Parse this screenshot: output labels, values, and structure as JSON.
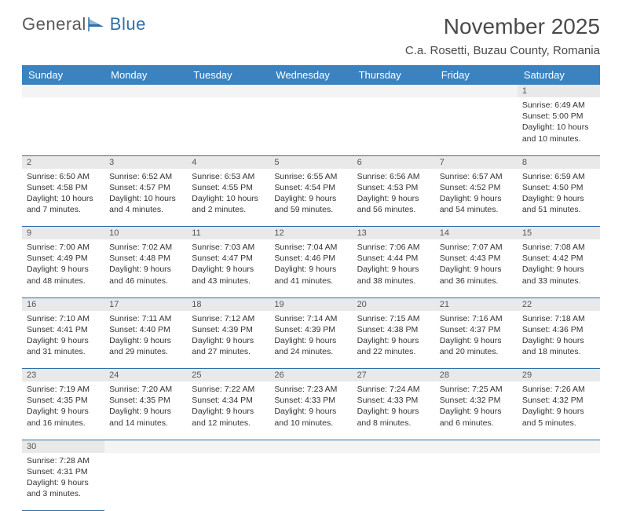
{
  "logo": {
    "textA": "General",
    "textB": "Blue"
  },
  "title": "November 2025",
  "location": "C.a. Rosetti, Buzau County, Romania",
  "colors": {
    "header_bg": "#3b83c0",
    "header_text": "#ffffff",
    "daynum_bg": "#e9e9e9",
    "row_border": "#2f6fa8",
    "logo_gray": "#5a5a5a",
    "logo_blue": "#2f6fa8"
  },
  "weekdays": [
    "Sunday",
    "Monday",
    "Tuesday",
    "Wednesday",
    "Thursday",
    "Friday",
    "Saturday"
  ],
  "weeks": [
    [
      null,
      null,
      null,
      null,
      null,
      null,
      {
        "n": "1",
        "sr": "6:49 AM",
        "ss": "5:00 PM",
        "dl": "10 hours and 10 minutes."
      }
    ],
    [
      {
        "n": "2",
        "sr": "6:50 AM",
        "ss": "4:58 PM",
        "dl": "10 hours and 7 minutes."
      },
      {
        "n": "3",
        "sr": "6:52 AM",
        "ss": "4:57 PM",
        "dl": "10 hours and 4 minutes."
      },
      {
        "n": "4",
        "sr": "6:53 AM",
        "ss": "4:55 PM",
        "dl": "10 hours and 2 minutes."
      },
      {
        "n": "5",
        "sr": "6:55 AM",
        "ss": "4:54 PM",
        "dl": "9 hours and 59 minutes."
      },
      {
        "n": "6",
        "sr": "6:56 AM",
        "ss": "4:53 PM",
        "dl": "9 hours and 56 minutes."
      },
      {
        "n": "7",
        "sr": "6:57 AM",
        "ss": "4:52 PM",
        "dl": "9 hours and 54 minutes."
      },
      {
        "n": "8",
        "sr": "6:59 AM",
        "ss": "4:50 PM",
        "dl": "9 hours and 51 minutes."
      }
    ],
    [
      {
        "n": "9",
        "sr": "7:00 AM",
        "ss": "4:49 PM",
        "dl": "9 hours and 48 minutes."
      },
      {
        "n": "10",
        "sr": "7:02 AM",
        "ss": "4:48 PM",
        "dl": "9 hours and 46 minutes."
      },
      {
        "n": "11",
        "sr": "7:03 AM",
        "ss": "4:47 PM",
        "dl": "9 hours and 43 minutes."
      },
      {
        "n": "12",
        "sr": "7:04 AM",
        "ss": "4:46 PM",
        "dl": "9 hours and 41 minutes."
      },
      {
        "n": "13",
        "sr": "7:06 AM",
        "ss": "4:44 PM",
        "dl": "9 hours and 38 minutes."
      },
      {
        "n": "14",
        "sr": "7:07 AM",
        "ss": "4:43 PM",
        "dl": "9 hours and 36 minutes."
      },
      {
        "n": "15",
        "sr": "7:08 AM",
        "ss": "4:42 PM",
        "dl": "9 hours and 33 minutes."
      }
    ],
    [
      {
        "n": "16",
        "sr": "7:10 AM",
        "ss": "4:41 PM",
        "dl": "9 hours and 31 minutes."
      },
      {
        "n": "17",
        "sr": "7:11 AM",
        "ss": "4:40 PM",
        "dl": "9 hours and 29 minutes."
      },
      {
        "n": "18",
        "sr": "7:12 AM",
        "ss": "4:39 PM",
        "dl": "9 hours and 27 minutes."
      },
      {
        "n": "19",
        "sr": "7:14 AM",
        "ss": "4:39 PM",
        "dl": "9 hours and 24 minutes."
      },
      {
        "n": "20",
        "sr": "7:15 AM",
        "ss": "4:38 PM",
        "dl": "9 hours and 22 minutes."
      },
      {
        "n": "21",
        "sr": "7:16 AM",
        "ss": "4:37 PM",
        "dl": "9 hours and 20 minutes."
      },
      {
        "n": "22",
        "sr": "7:18 AM",
        "ss": "4:36 PM",
        "dl": "9 hours and 18 minutes."
      }
    ],
    [
      {
        "n": "23",
        "sr": "7:19 AM",
        "ss": "4:35 PM",
        "dl": "9 hours and 16 minutes."
      },
      {
        "n": "24",
        "sr": "7:20 AM",
        "ss": "4:35 PM",
        "dl": "9 hours and 14 minutes."
      },
      {
        "n": "25",
        "sr": "7:22 AM",
        "ss": "4:34 PM",
        "dl": "9 hours and 12 minutes."
      },
      {
        "n": "26",
        "sr": "7:23 AM",
        "ss": "4:33 PM",
        "dl": "9 hours and 10 minutes."
      },
      {
        "n": "27",
        "sr": "7:24 AM",
        "ss": "4:33 PM",
        "dl": "9 hours and 8 minutes."
      },
      {
        "n": "28",
        "sr": "7:25 AM",
        "ss": "4:32 PM",
        "dl": "9 hours and 6 minutes."
      },
      {
        "n": "29",
        "sr": "7:26 AM",
        "ss": "4:32 PM",
        "dl": "9 hours and 5 minutes."
      }
    ],
    [
      {
        "n": "30",
        "sr": "7:28 AM",
        "ss": "4:31 PM",
        "dl": "9 hours and 3 minutes."
      },
      null,
      null,
      null,
      null,
      null,
      null
    ]
  ],
  "labels": {
    "sunrise": "Sunrise:",
    "sunset": "Sunset:",
    "daylight": "Daylight:"
  }
}
